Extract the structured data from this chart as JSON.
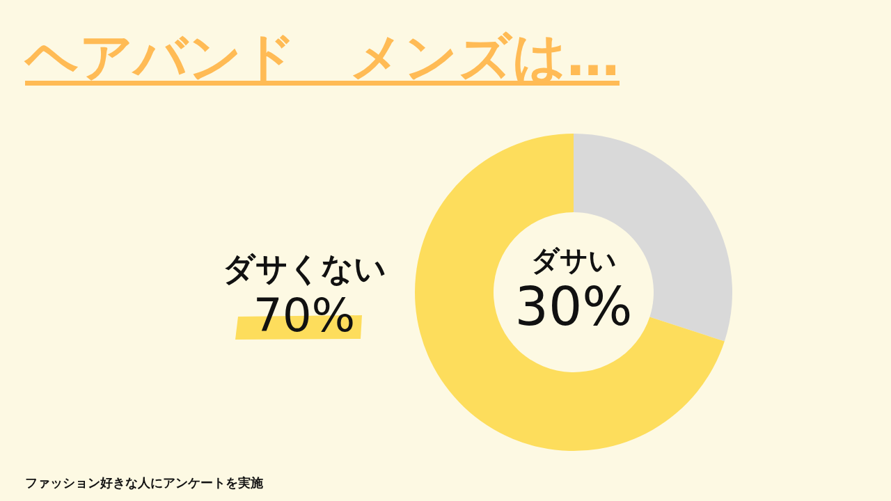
{
  "chart_data": {
    "type": "donut",
    "title": "ヘアバンド　メンズは…",
    "categories": [
      "ダサい",
      "ダサくない"
    ],
    "values": [
      30,
      70
    ],
    "value_labels": [
      "30%",
      "70%"
    ],
    "colors": [
      "#d9d9d9",
      "#fddd5c"
    ],
    "annotations": [
      "ファッション好きな人にアンケートを実施"
    ]
  }
}
